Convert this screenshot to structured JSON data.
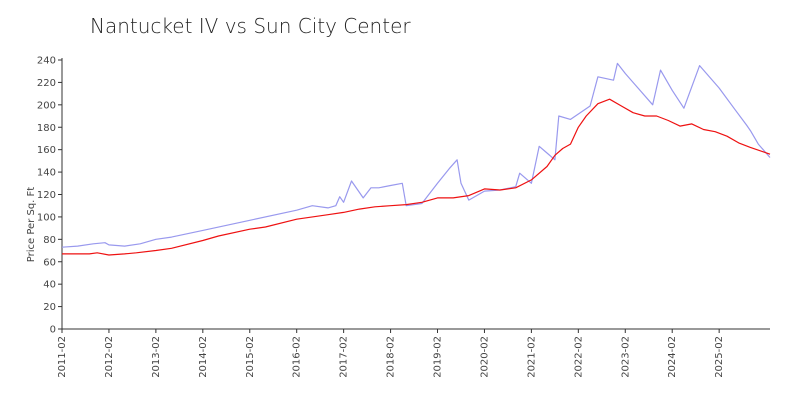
{
  "chart_data": {
    "type": "line",
    "title": "Nantucket IV vs Sun City Center",
    "xlabel": "",
    "ylabel": "Price Per Sq. Ft",
    "ylim": [
      0,
      240
    ],
    "yticks": [
      0,
      20,
      40,
      60,
      80,
      100,
      120,
      140,
      160,
      180,
      200,
      220,
      240
    ],
    "xlim": [
      "2011-02",
      "2025-12"
    ],
    "xticks": [
      "2011-02",
      "2012-02",
      "2013-02",
      "2014-02",
      "2015-02",
      "2016-02",
      "2017-02",
      "2018-02",
      "2019-02",
      "2020-02",
      "2021-02",
      "2022-02",
      "2023-02",
      "2024-02",
      "2025-02"
    ],
    "grid": false,
    "series": [
      {
        "color": "#9999ee",
        "points": [
          [
            "2011-02",
            73
          ],
          [
            "2011-06",
            74
          ],
          [
            "2011-10",
            76
          ],
          [
            "2012-01",
            77
          ],
          [
            "2012-02",
            75
          ],
          [
            "2012-06",
            74
          ],
          [
            "2012-10",
            76
          ],
          [
            "2013-02",
            80
          ],
          [
            "2013-06",
            82
          ],
          [
            "2014-02",
            88
          ],
          [
            "2015-02",
            97
          ],
          [
            "2016-02",
            106
          ],
          [
            "2016-06",
            110
          ],
          [
            "2016-10",
            108
          ],
          [
            "2016-12",
            110
          ],
          [
            "2017-01",
            118
          ],
          [
            "2017-02",
            113
          ],
          [
            "2017-04",
            132
          ],
          [
            "2017-07",
            117
          ],
          [
            "2017-09",
            126
          ],
          [
            "2017-11",
            126
          ],
          [
            "2018-02",
            128
          ],
          [
            "2018-05",
            130
          ],
          [
            "2018-06",
            110
          ],
          [
            "2018-10",
            112
          ],
          [
            "2019-02",
            130
          ],
          [
            "2019-05",
            143
          ],
          [
            "2019-07",
            151
          ],
          [
            "2019-08",
            130
          ],
          [
            "2019-10",
            115
          ],
          [
            "2020-02",
            123
          ],
          [
            "2020-06",
            124
          ],
          [
            "2020-10",
            127
          ],
          [
            "2020-11",
            139
          ],
          [
            "2021-02",
            130
          ],
          [
            "2021-04",
            163
          ],
          [
            "2021-06",
            157
          ],
          [
            "2021-08",
            151
          ],
          [
            "2021-09",
            190
          ],
          [
            "2021-12",
            187
          ],
          [
            "2022-05",
            199
          ],
          [
            "2022-07",
            225
          ],
          [
            "2022-11",
            222
          ],
          [
            "2022-12",
            237
          ],
          [
            "2023-02",
            228
          ],
          [
            "2023-05",
            216
          ],
          [
            "2023-09",
            200
          ],
          [
            "2023-11",
            231
          ],
          [
            "2024-02",
            213
          ],
          [
            "2024-05",
            197
          ],
          [
            "2024-09",
            235
          ],
          [
            "2025-02",
            215
          ],
          [
            "2025-06",
            196
          ],
          [
            "2025-09",
            182
          ],
          [
            "2025-10",
            177
          ],
          [
            "2025-12",
            165
          ],
          [
            "2026-03",
            153
          ]
        ]
      },
      {
        "color": "#ee1111",
        "points": [
          [
            "2011-02",
            67
          ],
          [
            "2011-06",
            67
          ],
          [
            "2011-09",
            67
          ],
          [
            "2011-11",
            68
          ],
          [
            "2012-02",
            66
          ],
          [
            "2012-06",
            67
          ],
          [
            "2012-09",
            68
          ],
          [
            "2013-02",
            70
          ],
          [
            "2013-06",
            72
          ],
          [
            "2014-02",
            79
          ],
          [
            "2014-06",
            83
          ],
          [
            "2015-02",
            89
          ],
          [
            "2015-06",
            91
          ],
          [
            "2016-02",
            98
          ],
          [
            "2016-10",
            102
          ],
          [
            "2017-02",
            104
          ],
          [
            "2017-06",
            107
          ],
          [
            "2017-10",
            109
          ],
          [
            "2018-02",
            110
          ],
          [
            "2018-06",
            111
          ],
          [
            "2018-10",
            113
          ],
          [
            "2019-02",
            117
          ],
          [
            "2019-06",
            117
          ],
          [
            "2019-10",
            119
          ],
          [
            "2020-02",
            125
          ],
          [
            "2020-06",
            124
          ],
          [
            "2020-10",
            126
          ],
          [
            "2021-02",
            133
          ],
          [
            "2021-06",
            145
          ],
          [
            "2021-08",
            155
          ],
          [
            "2021-10",
            161
          ],
          [
            "2021-12",
            165
          ],
          [
            "2022-02",
            180
          ],
          [
            "2022-04",
            190
          ],
          [
            "2022-07",
            201
          ],
          [
            "2022-10",
            205
          ],
          [
            "2023-01",
            199
          ],
          [
            "2023-04",
            193
          ],
          [
            "2023-07",
            190
          ],
          [
            "2023-10",
            190
          ],
          [
            "2024-01",
            186
          ],
          [
            "2024-04",
            181
          ],
          [
            "2024-07",
            183
          ],
          [
            "2024-10",
            178
          ],
          [
            "2025-01",
            176
          ],
          [
            "2025-04",
            172
          ],
          [
            "2025-07",
            166
          ],
          [
            "2025-10",
            162
          ],
          [
            "2026-03",
            156
          ]
        ]
      }
    ]
  }
}
